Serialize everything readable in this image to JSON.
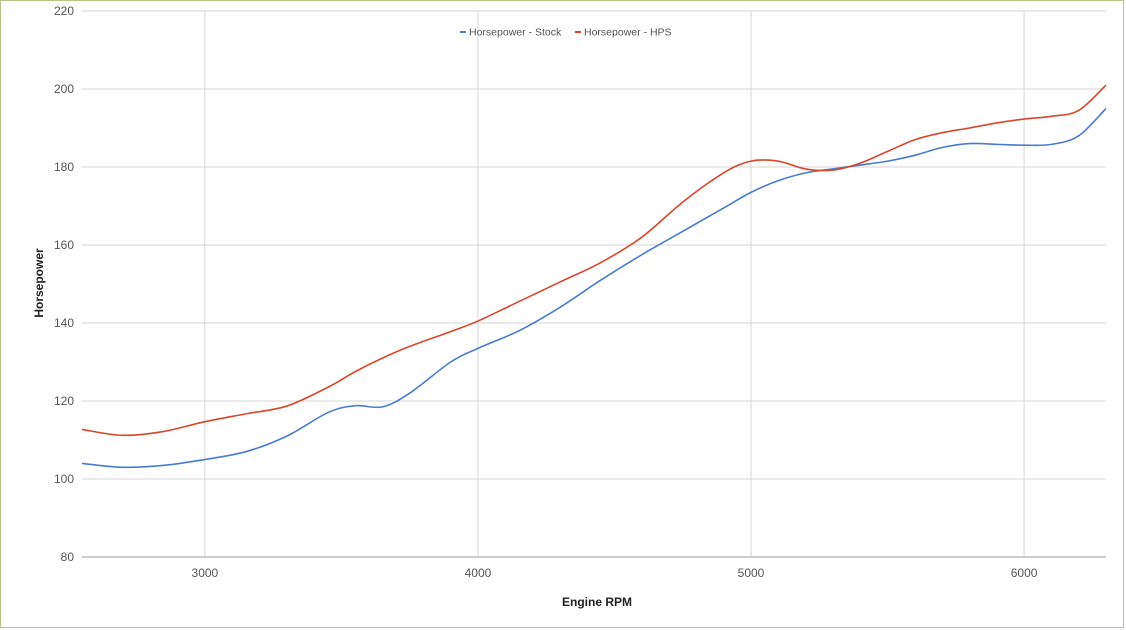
{
  "chart_data": {
    "type": "line",
    "title": "",
    "xlabel": "Engine RPM",
    "ylabel": "Horsepower",
    "xlim": [
      2550,
      6300
    ],
    "ylim": [
      80,
      220
    ],
    "x_ticks": [
      3000,
      4000,
      5000,
      6000
    ],
    "y_ticks": [
      80,
      100,
      120,
      140,
      160,
      180,
      200,
      220
    ],
    "grid": true,
    "legend_position": "top-center",
    "series": [
      {
        "name": "Horsepower - Stock",
        "color": "#4a7bd0",
        "x": [
          2550,
          2700,
          2850,
          3000,
          3150,
          3300,
          3450,
          3550,
          3650,
          3750,
          3900,
          4000,
          4150,
          4300,
          4450,
          4600,
          4750,
          4900,
          5000,
          5100,
          5200,
          5300,
          5400,
          5500,
          5600,
          5700,
          5800,
          5900,
          6000,
          6100,
          6200,
          6300
        ],
        "values": [
          104,
          103,
          103.5,
          105,
          107,
          111,
          117,
          118.8,
          118.5,
          122,
          130,
          133.5,
          138,
          144,
          151,
          157.5,
          163.5,
          169.5,
          173.5,
          176.5,
          178.5,
          179.5,
          180.5,
          181.5,
          183,
          185,
          186,
          185.8,
          185.6,
          185.8,
          188,
          195
        ]
      },
      {
        "name": "Horsepower - HPS",
        "color": "#d9462b",
        "x": [
          2550,
          2700,
          2850,
          3000,
          3150,
          3300,
          3450,
          3550,
          3650,
          3750,
          3900,
          4000,
          4150,
          4300,
          4450,
          4600,
          4750,
          4900,
          5000,
          5100,
          5200,
          5300,
          5400,
          5500,
          5600,
          5700,
          5800,
          5900,
          6000,
          6100,
          6200,
          6300
        ],
        "values": [
          112.7,
          111.2,
          112.2,
          114.7,
          116.7,
          118.7,
          123.5,
          127.5,
          131,
          134,
          137.8,
          140.5,
          145.5,
          150.5,
          155.5,
          162,
          171,
          178.5,
          181.5,
          181.5,
          179.5,
          179.2,
          181,
          184,
          187,
          188.8,
          190,
          191.3,
          192.3,
          193,
          194.5,
          201
        ]
      }
    ]
  }
}
